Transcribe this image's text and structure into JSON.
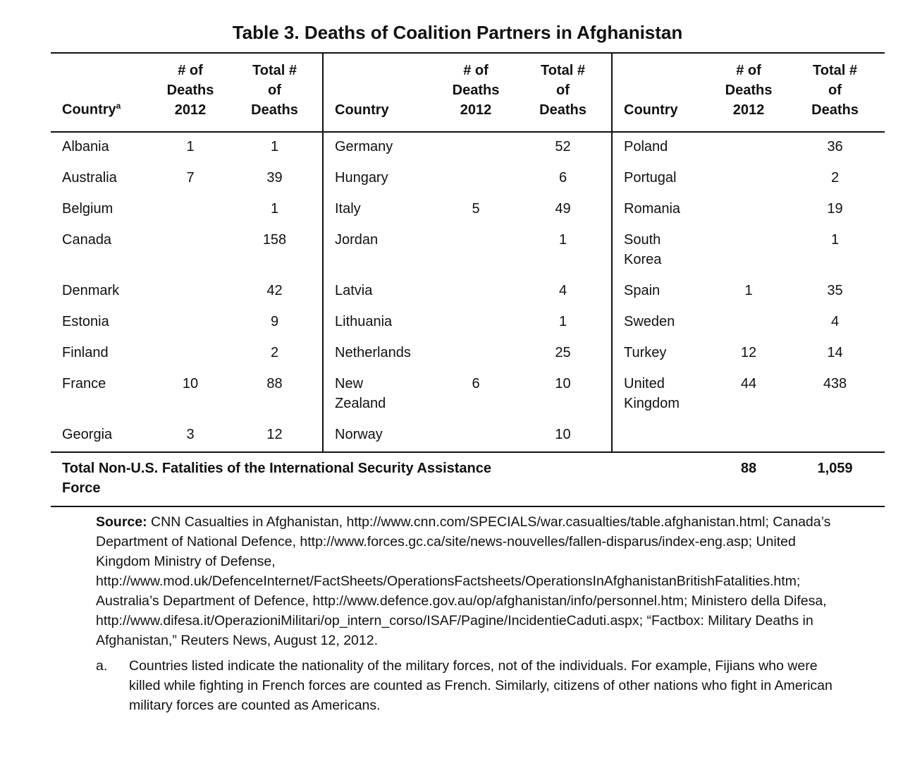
{
  "title": "Table 3. Deaths of Coalition Partners in Afghanistan",
  "table": {
    "header": {
      "country": "Country",
      "country_note": "a",
      "deaths_2012": [
        "# of",
        "Deaths",
        "2012"
      ],
      "total_deaths": [
        "Total #",
        "of",
        "Deaths"
      ]
    },
    "blocks": [
      [
        [
          "Albania",
          1,
          1
        ],
        [
          "Australia",
          7,
          39
        ],
        [
          "Belgium",
          null,
          1
        ],
        [
          "Canada",
          null,
          158
        ],
        [
          "Denmark",
          null,
          42
        ],
        [
          "Estonia",
          null,
          9
        ],
        [
          "Finland",
          null,
          2
        ],
        [
          "France",
          10,
          88
        ],
        [
          "Georgia",
          3,
          12
        ]
      ],
      [
        [
          "Germany",
          null,
          52
        ],
        [
          "Hungary",
          null,
          6
        ],
        [
          "Italy",
          5,
          49
        ],
        [
          "Jordan",
          null,
          1
        ],
        [
          "Latvia",
          null,
          4
        ],
        [
          "Lithuania",
          null,
          1
        ],
        [
          "Netherlands",
          null,
          25
        ],
        [
          "New Zealand",
          6,
          10
        ],
        [
          "Norway",
          null,
          10
        ]
      ],
      [
        [
          "Poland",
          null,
          36
        ],
        [
          "Portugal",
          null,
          2
        ],
        [
          "Romania",
          null,
          19
        ],
        [
          "South Korea",
          null,
          1
        ],
        [
          "Spain",
          1,
          35
        ],
        [
          "Sweden",
          null,
          4
        ],
        [
          "Turkey",
          12,
          14
        ],
        [
          "United Kingdom",
          44,
          438
        ]
      ]
    ],
    "total": {
      "label": "Total Non-U.S. Fatalities of the International Security Assistance Force",
      "deaths_2012": 88,
      "total_deaths": "1,059"
    }
  },
  "source": {
    "label": "Source:",
    "text": "CNN Casualties in Afghanistan, http://www.cnn.com/SPECIALS/war.casualties/table.afghanistan.html; Canada’s Department of National Defence, http://www.forces.gc.ca/site/news-nouvelles/fallen-disparus/index-eng.asp; United Kingdom Ministry of Defense, http://www.mod.uk/DefenceInternet/FactSheets/OperationsFactsheets/OperationsInAfghanistanBritishFatalities.htm; Australia’s Department of Defence, http://www.defence.gov.au/op/afghanistan/info/personnel.htm; Ministero della Difesa, http://www.difesa.it/OperazioniMilitari/op_intern_corso/ISAF/Pagine/IncidentieCaduti.aspx; “Factbox: Military Deaths in Afghanistan,” Reuters News, August 12, 2012."
  },
  "note": {
    "marker": "a.",
    "text": "Countries listed indicate the nationality of the military forces, not of the individuals. For example, Fijians who were killed while fighting in French forces are counted as French. Similarly, citizens of other nations who fight in American military forces are counted as Americans."
  }
}
